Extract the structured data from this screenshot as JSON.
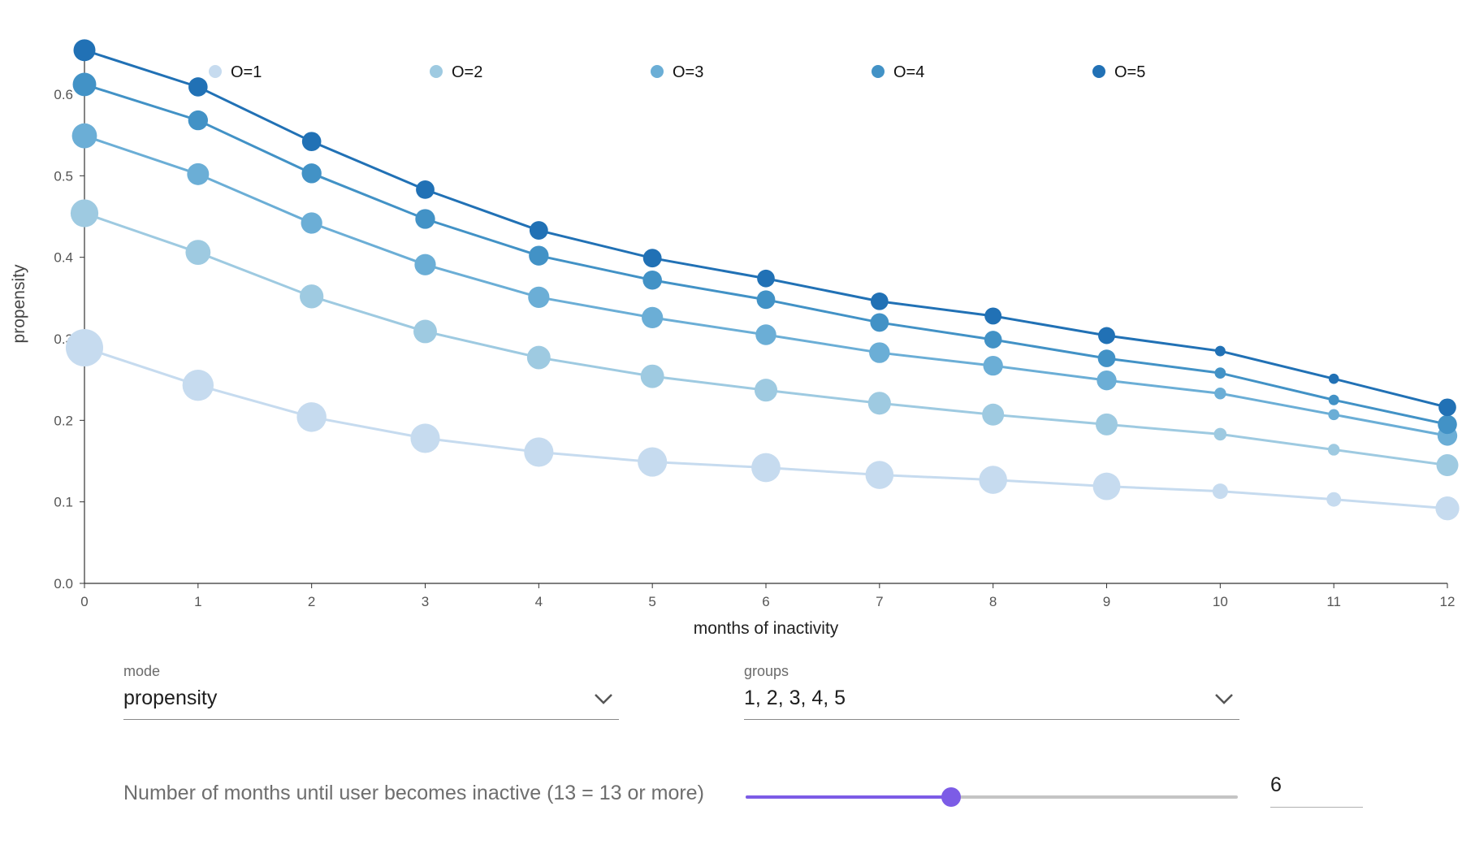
{
  "chart_data": {
    "type": "line",
    "title": "",
    "xlabel": "months of inactivity",
    "ylabel": "propensity",
    "xlim": [
      0,
      12
    ],
    "ylim": [
      0,
      0.65
    ],
    "x": [
      0,
      1,
      2,
      3,
      4,
      5,
      6,
      7,
      8,
      9,
      10,
      11,
      12
    ],
    "x_ticks": [
      "0",
      "1",
      "2",
      "3",
      "4",
      "5",
      "6",
      "7",
      "8",
      "9",
      "10",
      "11",
      "12"
    ],
    "y_ticks": [
      "0.0",
      "0.1",
      "0.2",
      "0.3",
      "0.4",
      "0.5",
      "0.6"
    ],
    "y_tick_values": [
      0,
      0.1,
      0.2,
      0.3,
      0.4,
      0.5,
      0.6
    ],
    "legend_position": "top",
    "grid": false,
    "series": [
      {
        "name": "O=1",
        "color": "#c6dbef",
        "values": [
          0.289,
          0.243,
          0.204,
          0.178,
          0.161,
          0.149,
          0.142,
          0.133,
          0.127,
          0.119,
          0.113,
          0.103,
          0.092
        ],
        "marker_scale": [
          1.0,
          0.8,
          0.75,
          0.74,
          0.74,
          0.74,
          0.73,
          0.7,
          0.7,
          0.68,
          0.29,
          0.26,
          0.56
        ]
      },
      {
        "name": "O=2",
        "color": "#9ecae1",
        "values": [
          0.454,
          0.406,
          0.352,
          0.309,
          0.277,
          0.254,
          0.237,
          0.221,
          0.207,
          0.195,
          0.183,
          0.164,
          0.145
        ],
        "marker_scale": [
          0.69,
          0.6,
          0.56,
          0.55,
          0.55,
          0.55,
          0.53,
          0.53,
          0.5,
          0.5,
          0.2,
          0.17,
          0.5
        ]
      },
      {
        "name": "O=3",
        "color": "#6baed6",
        "values": [
          0.549,
          0.502,
          0.442,
          0.391,
          0.351,
          0.326,
          0.305,
          0.283,
          0.267,
          0.249,
          0.233,
          0.207,
          0.181
        ],
        "marker_scale": [
          0.6,
          0.5,
          0.48,
          0.48,
          0.48,
          0.48,
          0.46,
          0.46,
          0.43,
          0.43,
          0.17,
          0.15,
          0.43
        ]
      },
      {
        "name": "O=4",
        "color": "#4292c6",
        "values": [
          0.612,
          0.568,
          0.503,
          0.447,
          0.402,
          0.372,
          0.348,
          0.32,
          0.299,
          0.276,
          0.258,
          0.225,
          0.195
        ],
        "marker_scale": [
          0.55,
          0.43,
          0.43,
          0.43,
          0.43,
          0.41,
          0.39,
          0.39,
          0.36,
          0.36,
          0.15,
          0.13,
          0.41
        ]
      },
      {
        "name": "O=5",
        "color": "#2171b5",
        "values": [
          0.654,
          0.609,
          0.542,
          0.483,
          0.433,
          0.399,
          0.374,
          0.346,
          0.328,
          0.304,
          0.285,
          0.251,
          0.216
        ],
        "marker_scale": [
          0.5,
          0.41,
          0.41,
          0.39,
          0.39,
          0.39,
          0.36,
          0.36,
          0.34,
          0.34,
          0.13,
          0.12,
          0.36
        ]
      }
    ]
  },
  "controls": {
    "mode_label": "mode",
    "mode_value": "propensity",
    "groups_label": "groups",
    "groups_value": "1, 2, 3, 4, 5",
    "slider_label": "Number of months until user becomes inactive (13 = 13 or more)",
    "slider_value": "6",
    "slider_min": 1,
    "slider_max": 13,
    "accent_color": "#7c5ce6"
  }
}
